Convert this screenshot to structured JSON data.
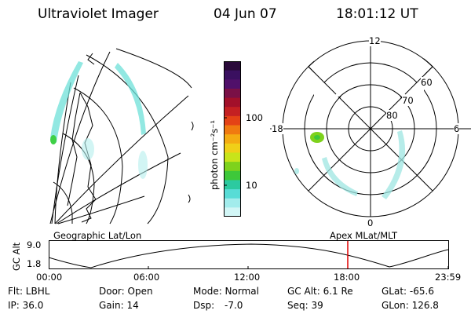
{
  "header": {
    "instrument": "Ultraviolet Imager",
    "date": "04 Jun 07",
    "time": "18:01:12 UT"
  },
  "geo_panel": {
    "label": "Geographic Lat/Lon"
  },
  "polar_panel": {
    "label": "Apex MLat/MLT",
    "mlt_labels": [
      "12",
      "18",
      "6",
      "0"
    ],
    "lat_labels": [
      "60",
      "70",
      "80"
    ]
  },
  "colorbar": {
    "unit_label": "photon cm⁻²s⁻¹",
    "ticks": [
      "100",
      "10"
    ],
    "colors": [
      "#2a0a3a",
      "#3a1060",
      "#50106a",
      "#7a1046",
      "#a2102a",
      "#c42022",
      "#e44216",
      "#f07a10",
      "#f4ac12",
      "#f0d018",
      "#c8e41a",
      "#7ed21c",
      "#3ec83a",
      "#2ccaa0",
      "#58dcd6",
      "#a2ecec",
      "#d2f6f6"
    ]
  },
  "altitude_plot": {
    "y_label": "GC Alt",
    "y_ticks": [
      "9.0",
      "1.8"
    ],
    "x_ticks": [
      "00:00",
      "06:00",
      "12:00",
      "18:00",
      "23:59"
    ],
    "marker_color": "#e00000"
  },
  "status": {
    "filter": "Flt: LBHL",
    "door": "Door: Open",
    "mode": "Mode: Normal",
    "gc_alt": "GC Alt: 6.1 Re",
    "glat": "GLat: -65.6",
    "ip": "IP: 36.0",
    "gain": "Gain: 14",
    "dsp_label": "Dsp:",
    "dsp_value": "-7.0",
    "seq": "Seq: 39",
    "glon": "GLon: 126.8"
  }
}
